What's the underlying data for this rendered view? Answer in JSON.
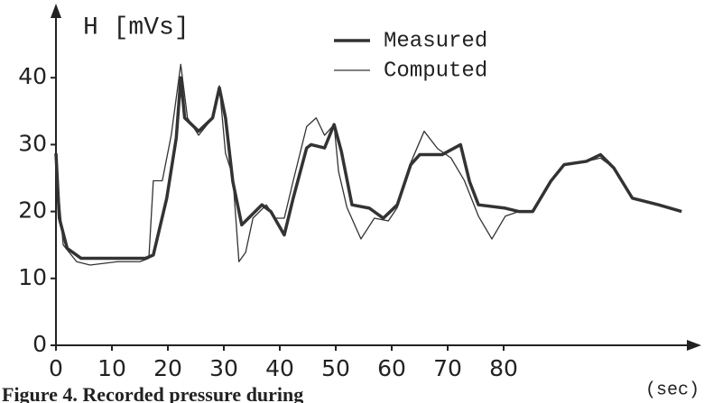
{
  "chart_data": {
    "type": "line",
    "y_label": "H [mVs]",
    "x_label": "(sec)",
    "caption": "Figure 4. Recorded pressure during",
    "xlim": [
      0,
      115
    ],
    "ylim": [
      0,
      50
    ],
    "xticks": [
      0,
      10,
      20,
      30,
      40,
      50,
      60,
      70,
      80
    ],
    "yticks": [
      0,
      10,
      20,
      30,
      40
    ],
    "legend": "top",
    "series": [
      {
        "name": "Measured",
        "color": "#333333",
        "width": 3.5,
        "x": [
          0,
          0.6,
          2,
          4.5,
          16,
          17.4,
          19.8,
          21.5,
          22.3,
          23,
          25.5,
          28,
          29.2,
          30.3,
          31.6,
          33.2,
          34.4,
          36.8,
          38.4,
          40.8,
          42.4,
          44.8,
          45.6,
          48,
          49.7,
          51,
          52.9,
          56,
          58.5,
          61,
          63.4,
          65,
          69,
          72.3,
          73.9,
          75.5,
          80.3,
          82.7,
          85.2,
          88.4,
          90.8,
          94.8,
          97.3,
          99.7,
          103,
          107.7,
          111.8
        ],
        "values": [
          28.7,
          19,
          14.5,
          13,
          13,
          13.5,
          22,
          31,
          40,
          34,
          32,
          34,
          38.5,
          34,
          24.5,
          18,
          19,
          21,
          20,
          16.5,
          22,
          29.5,
          30,
          29.5,
          33,
          29,
          21,
          20.5,
          19,
          21,
          27,
          28.5,
          28.5,
          30,
          24.5,
          21,
          20.5,
          20,
          20,
          24.5,
          27,
          27.5,
          28.5,
          26.5,
          22,
          21,
          20
        ]
      },
      {
        "name": "Computed",
        "color": "#333333",
        "width": 1.3,
        "x": [
          0,
          1.3,
          3.7,
          6.1,
          11,
          15,
          16.6,
          17.4,
          19,
          20.6,
          22.3,
          23.5,
          25.5,
          28,
          29.2,
          30.3,
          31.6,
          32.7,
          33.9,
          35.2,
          37.6,
          39.2,
          40.8,
          42.4,
          44.8,
          46.5,
          48,
          49.7,
          50.5,
          52,
          54.5,
          56.9,
          59.4,
          61,
          63.4,
          65.8,
          68.2,
          70.6,
          73,
          75.5,
          77.9,
          80.3,
          82.7,
          85,
          88.4,
          90.8,
          94.8,
          97.3,
          99.7,
          103,
          107.7,
          111.8
        ],
        "values": [
          27,
          15,
          12.5,
          12,
          12.5,
          12.5,
          13,
          24.6,
          24.6,
          31.4,
          42,
          34,
          31.4,
          34,
          38.8,
          28.7,
          25.3,
          12.5,
          13.9,
          19,
          21,
          19,
          19,
          24.6,
          32.7,
          34,
          31.4,
          33,
          26,
          20.6,
          15.9,
          19,
          18.6,
          20.6,
          27.3,
          32,
          29.4,
          28,
          24.6,
          19.3,
          15.9,
          19.3,
          20,
          20,
          24.6,
          27,
          27.5,
          28,
          26.5,
          22,
          21,
          20
        ]
      }
    ]
  }
}
